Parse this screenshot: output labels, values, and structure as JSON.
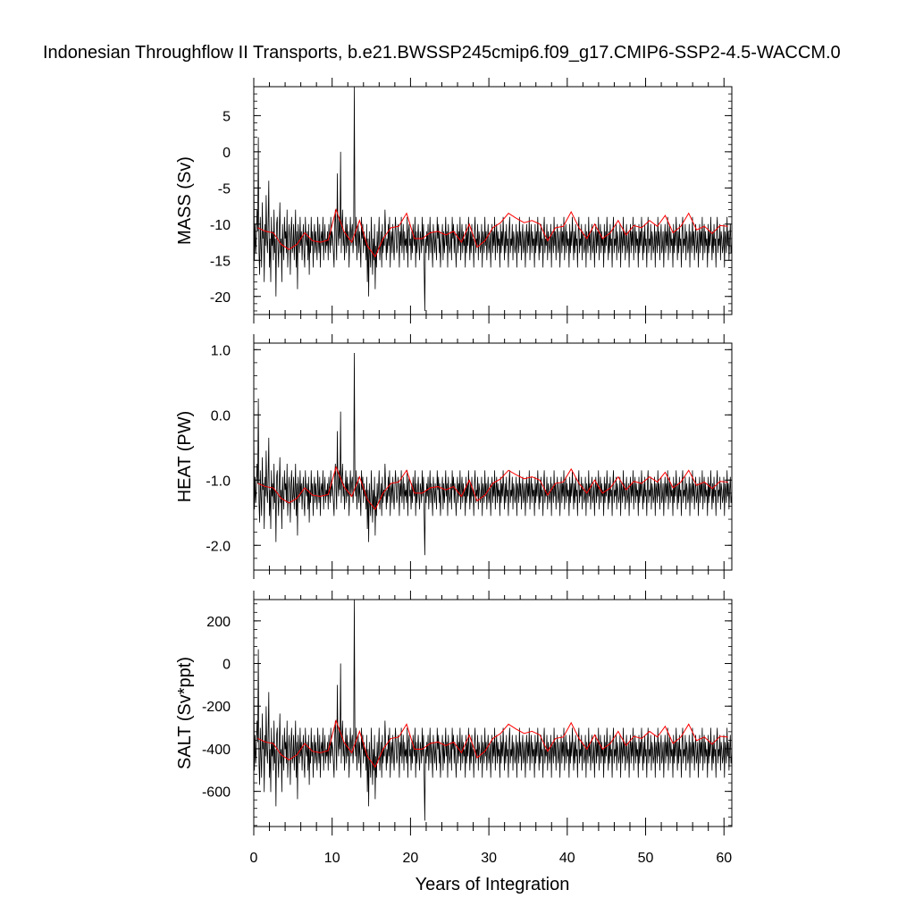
{
  "title": "Indonesian Throughflow II Transports, b.e21.BWSSP245cmip6.f09_g17.CMIP6-SSP2-4.5-WACCM.0",
  "xlabel": "Years of Integration",
  "colors": {
    "raw": "#000000",
    "annual": "#ff0000",
    "frame": "#000000"
  },
  "chart_data": [
    {
      "type": "line",
      "panel": "mass",
      "ylabel": "MASS (Sv)",
      "xlim": [
        0,
        61
      ],
      "ylim": [
        -22.5,
        9
      ],
      "yticks": [
        5,
        0,
        -5,
        -10,
        -15,
        -20
      ],
      "yticklabels": [
        "5",
        "0",
        "-5",
        "-10",
        "-15",
        "-20"
      ],
      "xticks": [
        0,
        10,
        20,
        30,
        40,
        50,
        60
      ],
      "xticklabels": [
        "0",
        "10",
        "20",
        "30",
        "40",
        "50",
        "60"
      ],
      "series": [
        {
          "style": "monthly",
          "color": "#000000",
          "x_start": 0,
          "x_step": 0.0833,
          "values": [
            -2,
            -15,
            -10,
            -14,
            -12,
            -8,
            -11,
            2,
            -14,
            -17,
            -9,
            -13,
            -16,
            -7,
            -12,
            -11,
            -18,
            -10,
            -13,
            -6,
            -12,
            -14,
            -10,
            -4,
            -16,
            -12,
            -18,
            -9,
            -13,
            -11,
            -15,
            -8,
            -14,
            -12,
            -20,
            -10,
            -9,
            -13,
            -16,
            -11,
            -7,
            -14,
            -12,
            -18,
            -10,
            -13,
            -15,
            -9,
            -12,
            -11,
            -14,
            -8,
            -16,
            -13,
            -10,
            -12,
            -17,
            -11,
            -9,
            -14,
            -13,
            -10,
            -15,
            -12,
            -8,
            -16,
            -11,
            -19,
            -10,
            -12,
            -14,
            -9,
            -13,
            -11,
            -15,
            -12,
            -10,
            -14,
            -16,
            -9,
            -12,
            -13,
            -11,
            -15,
            -10,
            -17,
            -12,
            -14,
            -9,
            -13,
            -11,
            -16,
            -12,
            -10,
            -14,
            -11,
            -13,
            -15,
            -9,
            -12,
            -14,
            -10,
            -16,
            -12,
            -11,
            -13,
            -9,
            -15,
            -12,
            -10,
            -14,
            -12,
            -13,
            -11,
            -15,
            -10,
            -12,
            -14,
            -9,
            -13,
            -11,
            -12,
            -14,
            -16,
            -10,
            -8,
            -12,
            -15,
            -3,
            -11,
            -13,
            -9,
            -12,
            0,
            -14,
            -10,
            -8,
            -13,
            -11,
            -15,
            -12,
            -9,
            -14,
            -10,
            -13,
            -11,
            -16,
            -12,
            -9,
            -13,
            -11,
            -10,
            -14,
            -12,
            9,
            -11,
            -13,
            -9,
            -15,
            -12,
            -10,
            -14,
            -11,
            -13,
            -16,
            -9,
            -12,
            -10,
            -14,
            -11,
            -13,
            -12,
            -15,
            -10,
            -18,
            -12,
            -20,
            -11,
            -14,
            -16,
            -9,
            -13,
            -17,
            -12,
            -15,
            -10,
            -19,
            -13,
            -16,
            -11,
            -14,
            -12,
            -9,
            -15,
            -13,
            -11,
            -16,
            -10,
            -14,
            -12,
            -13,
            -8,
            -11,
            -15,
            -12,
            -14,
            -10,
            -13,
            -9,
            -16,
            -12,
            -11,
            -14,
            -10,
            -13,
            -15,
            -12,
            -9,
            -11,
            -14,
            -13,
            -10,
            -12,
            -16,
            -11,
            -13,
            -9,
            -14,
            -12,
            -10,
            -15,
            -11,
            -13,
            -12,
            -14,
            -9,
            -16,
            -11,
            -10,
            -13,
            -12,
            -15,
            -11,
            -14,
            -10,
            -12,
            -13,
            -9,
            -16,
            -11,
            -14,
            -12,
            -10,
            -13,
            -15,
            -11,
            -12,
            -14,
            -9,
            -13,
            -10,
            -16,
            -22,
            -12,
            -14,
            -11,
            -13,
            -10,
            -15,
            -12,
            -9,
            -14,
            -11,
            -13,
            -16,
            -10,
            -12,
            -14,
            -11,
            -13,
            -15,
            -9,
            -12,
            -10,
            -14,
            -11,
            -16,
            -13,
            -12,
            -10,
            -15,
            -11,
            -14,
            -12,
            -9,
            -13,
            -11,
            -16,
            -10,
            -12,
            -14,
            -13,
            -11,
            -15,
            -9,
            -12,
            -10,
            -14,
            -11,
            -13,
            -16,
            -12,
            -10,
            -14,
            -11,
            -13,
            -9,
            -15,
            -12,
            -10,
            -14,
            -11,
            -13,
            -12,
            -16,
            -10,
            -14,
            -11,
            -13,
            -9,
            -12,
            -15,
            -11,
            -14,
            -10,
            -13,
            -12,
            -16,
            -11,
            -9,
            -14,
            -12,
            -13,
            -10,
            -15,
            -11,
            -12,
            -14,
            -13,
            -10,
            -16,
            -11,
            -12,
            -14,
            -9,
            -13,
            -11,
            -15,
            -12,
            -10,
            -14,
            -13,
            -11,
            -16,
            -12,
            -10,
            -14,
            -11,
            -13,
            -9,
            -15,
            -12,
            -10,
            -14,
            -11,
            -13,
            -12,
            -16,
            -10,
            -14,
            -11,
            -13,
            -9,
            -12,
            -15,
            -11,
            -14,
            -10,
            -13,
            -12,
            -16,
            -11,
            -9,
            -14,
            -12,
            -13,
            -10,
            -15,
            -11,
            -12,
            -14,
            -13,
            -10,
            -16,
            -11,
            -12,
            -14,
            -9,
            -13,
            -11,
            -15,
            -12,
            -10,
            -14,
            -13,
            -11,
            -16,
            -12,
            -10,
            -14,
            -11,
            -13,
            -9,
            -15,
            -12,
            -10,
            -14,
            -11,
            -13,
            -12,
            -16,
            -10,
            -14,
            -11,
            -13,
            -9,
            -12,
            -15,
            -11,
            -14,
            -10,
            -13,
            -12,
            -16,
            -11,
            -9,
            -14,
            -12,
            -13,
            -10,
            -15,
            -11,
            -12,
            -14,
            -13,
            -10,
            -16,
            -11,
            -12,
            -14,
            -9,
            -13,
            -11,
            -15,
            -12,
            -10,
            -14,
            -13,
            -11,
            -16,
            -12,
            -10,
            -14,
            -11,
            -13,
            -9,
            -15,
            -12,
            -10,
            -14,
            -11,
            -13,
            -12,
            -16,
            -10,
            -14,
            -11,
            -13,
            -9,
            -12,
            -15,
            -11,
            -14,
            -10,
            -13,
            -12,
            -16,
            -11,
            -9,
            -14,
            -12,
            -13,
            -10,
            -15,
            -11,
            -12,
            -14,
            -13,
            -10,
            -16,
            -11,
            -12,
            -14,
            -9,
            -13,
            -11,
            -15,
            -12,
            -10,
            -14,
            -13,
            -11,
            -16,
            -12,
            -10,
            -14,
            -11,
            -13,
            -9,
            -15,
            -12,
            -10,
            -14,
            -11,
            -13,
            -12,
            -16,
            -10,
            -14,
            -11,
            -13,
            -9,
            -12,
            -15,
            -11,
            -14,
            -10,
            -13,
            -12,
            -16,
            -11,
            -9,
            -14,
            -12,
            -13,
            -10,
            -15,
            -11,
            -12,
            -14,
            -13,
            -10,
            -16,
            -11,
            -12,
            -14,
            -9,
            -13,
            -11,
            -15,
            -12,
            -10,
            -14,
            -13,
            -11,
            -16,
            -12,
            -10,
            -14,
            -11,
            -13,
            -9,
            -15,
            -12,
            -10,
            -14,
            -11,
            -13,
            -12,
            -16,
            -10,
            -14,
            -11,
            -13,
            -9,
            -12,
            -15,
            -11,
            -14,
            -10,
            -13,
            -12,
            -16,
            -11,
            -9,
            -14,
            -12,
            -13,
            -10,
            -15,
            -11,
            -12,
            -14,
            -13,
            -10,
            -16,
            -11,
            -12,
            -14,
            -9,
            -13,
            -11,
            -15,
            -12,
            -10,
            -14,
            -13,
            -11,
            -16,
            -12,
            -10,
            -14,
            -11,
            -13,
            -9,
            -15,
            -12,
            -10,
            -14,
            -11,
            -13,
            -12,
            -16,
            -10,
            -14,
            -11,
            -13,
            -9,
            -12,
            -15,
            -11,
            -14,
            -10,
            -13,
            -12,
            -16,
            -11,
            -9,
            -14,
            -12,
            -13,
            -10,
            -15,
            -11,
            -12,
            -14,
            -13,
            -10,
            -16,
            -11,
            -12,
            -14,
            -9,
            -13,
            -11,
            -15,
            -12,
            -10,
            -14,
            -13,
            -11,
            -16,
            -12,
            -10,
            -14,
            -11,
            -13,
            -9,
            -15,
            -12,
            -10,
            -14,
            -11,
            -13,
            -12,
            -16,
            -10,
            -14,
            -11,
            -13,
            -9,
            -12,
            -15,
            -11,
            -14,
            -10,
            -13,
            -12,
            -16,
            -11,
            -9,
            -14,
            -12,
            -13,
            -10,
            -15,
            -11,
            -12,
            -14,
            -13,
            -10,
            -16,
            -11,
            -12,
            -14,
            -9,
            -13,
            -11,
            -15,
            -12,
            -10,
            -14,
            -13,
            -11,
            -16,
            -12,
            -10,
            -14,
            -11,
            -13,
            -9,
            -15,
            -12,
            -10,
            -14,
            -11,
            -13,
            -12,
            -16,
            -10,
            -14,
            -11,
            -13,
            -9,
            -12,
            -15,
            -11,
            -14,
            -10,
            -13,
            -12,
            -16,
            -11,
            -9,
            -14,
            -12,
            -13,
            -10,
            -15,
            -11,
            -12,
            -14,
            -13,
            -10,
            -16,
            -11,
            -12,
            -14,
            -9,
            -13,
            -11,
            -15,
            -12,
            -10,
            -14
          ]
        },
        {
          "style": "annual",
          "color": "#ff0000",
          "x": [
            0.5,
            1.5,
            2.5,
            3.5,
            4.5,
            5.5,
            6.5,
            7.5,
            8.5,
            9.5,
            10.5,
            11.5,
            12.5,
            13.5,
            14.5,
            15.5,
            16.5,
            17.5,
            18.5,
            19.5,
            20.5,
            21.5,
            22.5,
            23.5,
            24.5,
            25.5,
            26.5,
            27.5,
            28.5,
            29.5,
            30.5,
            31.5,
            32.5,
            33.5,
            34.5,
            35.5,
            36.5,
            37.5,
            38.5,
            39.5,
            40.5,
            41.5,
            42.5,
            43.5,
            44.5,
            45.5,
            46.5,
            47.5,
            48.5,
            49.5,
            50.5,
            51.5,
            52.5,
            53.5,
            54.5,
            55.5,
            56.5,
            57.5,
            58.5,
            59.5,
            60.5
          ],
          "values": [
            -10.5,
            -11,
            -11.2,
            -12.8,
            -13.5,
            -12.8,
            -11.2,
            -12.3,
            -12.5,
            -12.2,
            -8,
            -11,
            -12.5,
            -9.5,
            -13,
            -14.5,
            -12,
            -10.5,
            -10.3,
            -8.5,
            -12,
            -12,
            -11.2,
            -11,
            -11.5,
            -11,
            -12.5,
            -10,
            -13.2,
            -12.3,
            -10.5,
            -9.8,
            -8.5,
            -9.2,
            -9.8,
            -9.5,
            -10,
            -12.3,
            -10.5,
            -10.3,
            -8.3,
            -10.5,
            -12,
            -10,
            -12,
            -11.2,
            -9.5,
            -11.5,
            -10.2,
            -10.5,
            -9.5,
            -10.3,
            -8.8,
            -11.2,
            -10.3,
            -8.5,
            -10.8,
            -10.3,
            -11.3,
            -10.2,
            -10.3
          ]
        }
      ]
    },
    {
      "type": "line",
      "panel": "heat",
      "ylabel": "HEAT (PW)",
      "xlim": [
        0,
        61
      ],
      "ylim": [
        -2.38,
        1.1
      ],
      "yticks": [
        1.0,
        0.0,
        -1.0,
        -2.0
      ],
      "yticklabels": [
        "1.0",
        "0.0",
        "-1.0",
        "-2.0"
      ],
      "xticks": [
        0,
        10,
        20,
        30,
        40,
        50,
        60
      ],
      "xticklabels": [
        "0",
        "10",
        "20",
        "30",
        "40",
        "50",
        "60"
      ],
      "series": [
        {
          "style": "monthly",
          "color": "#000000",
          "x_start": 0,
          "x_step": 0.0833,
          "derived_from": "mass",
          "scale": 0.1,
          "offset": 0.05
        },
        {
          "style": "annual",
          "color": "#ff0000",
          "derived_from": "mass",
          "scale": 0.1,
          "offset": 0.0
        }
      ]
    },
    {
      "type": "line",
      "panel": "salt",
      "ylabel": "SALT (Sv*ppt)",
      "xlim": [
        0,
        61
      ],
      "ylim": [
        -765,
        300
      ],
      "yticks": [
        200,
        0,
        -200,
        -400,
        -600
      ],
      "yticklabels": [
        "200",
        "0",
        "-200",
        "-400",
        "-600"
      ],
      "xticks": [
        0,
        10,
        20,
        30,
        40,
        50,
        60
      ],
      "xticklabels": [
        "0",
        "10",
        "20",
        "30",
        "40",
        "50",
        "60"
      ],
      "series": [
        {
          "style": "monthly",
          "color": "#000000",
          "x_start": 0,
          "x_step": 0.0833,
          "derived_from": "mass",
          "scale": 33.5,
          "offset": 0
        },
        {
          "style": "annual",
          "color": "#ff0000",
          "derived_from": "mass",
          "scale": 33.5,
          "offset": 0
        }
      ]
    }
  ]
}
